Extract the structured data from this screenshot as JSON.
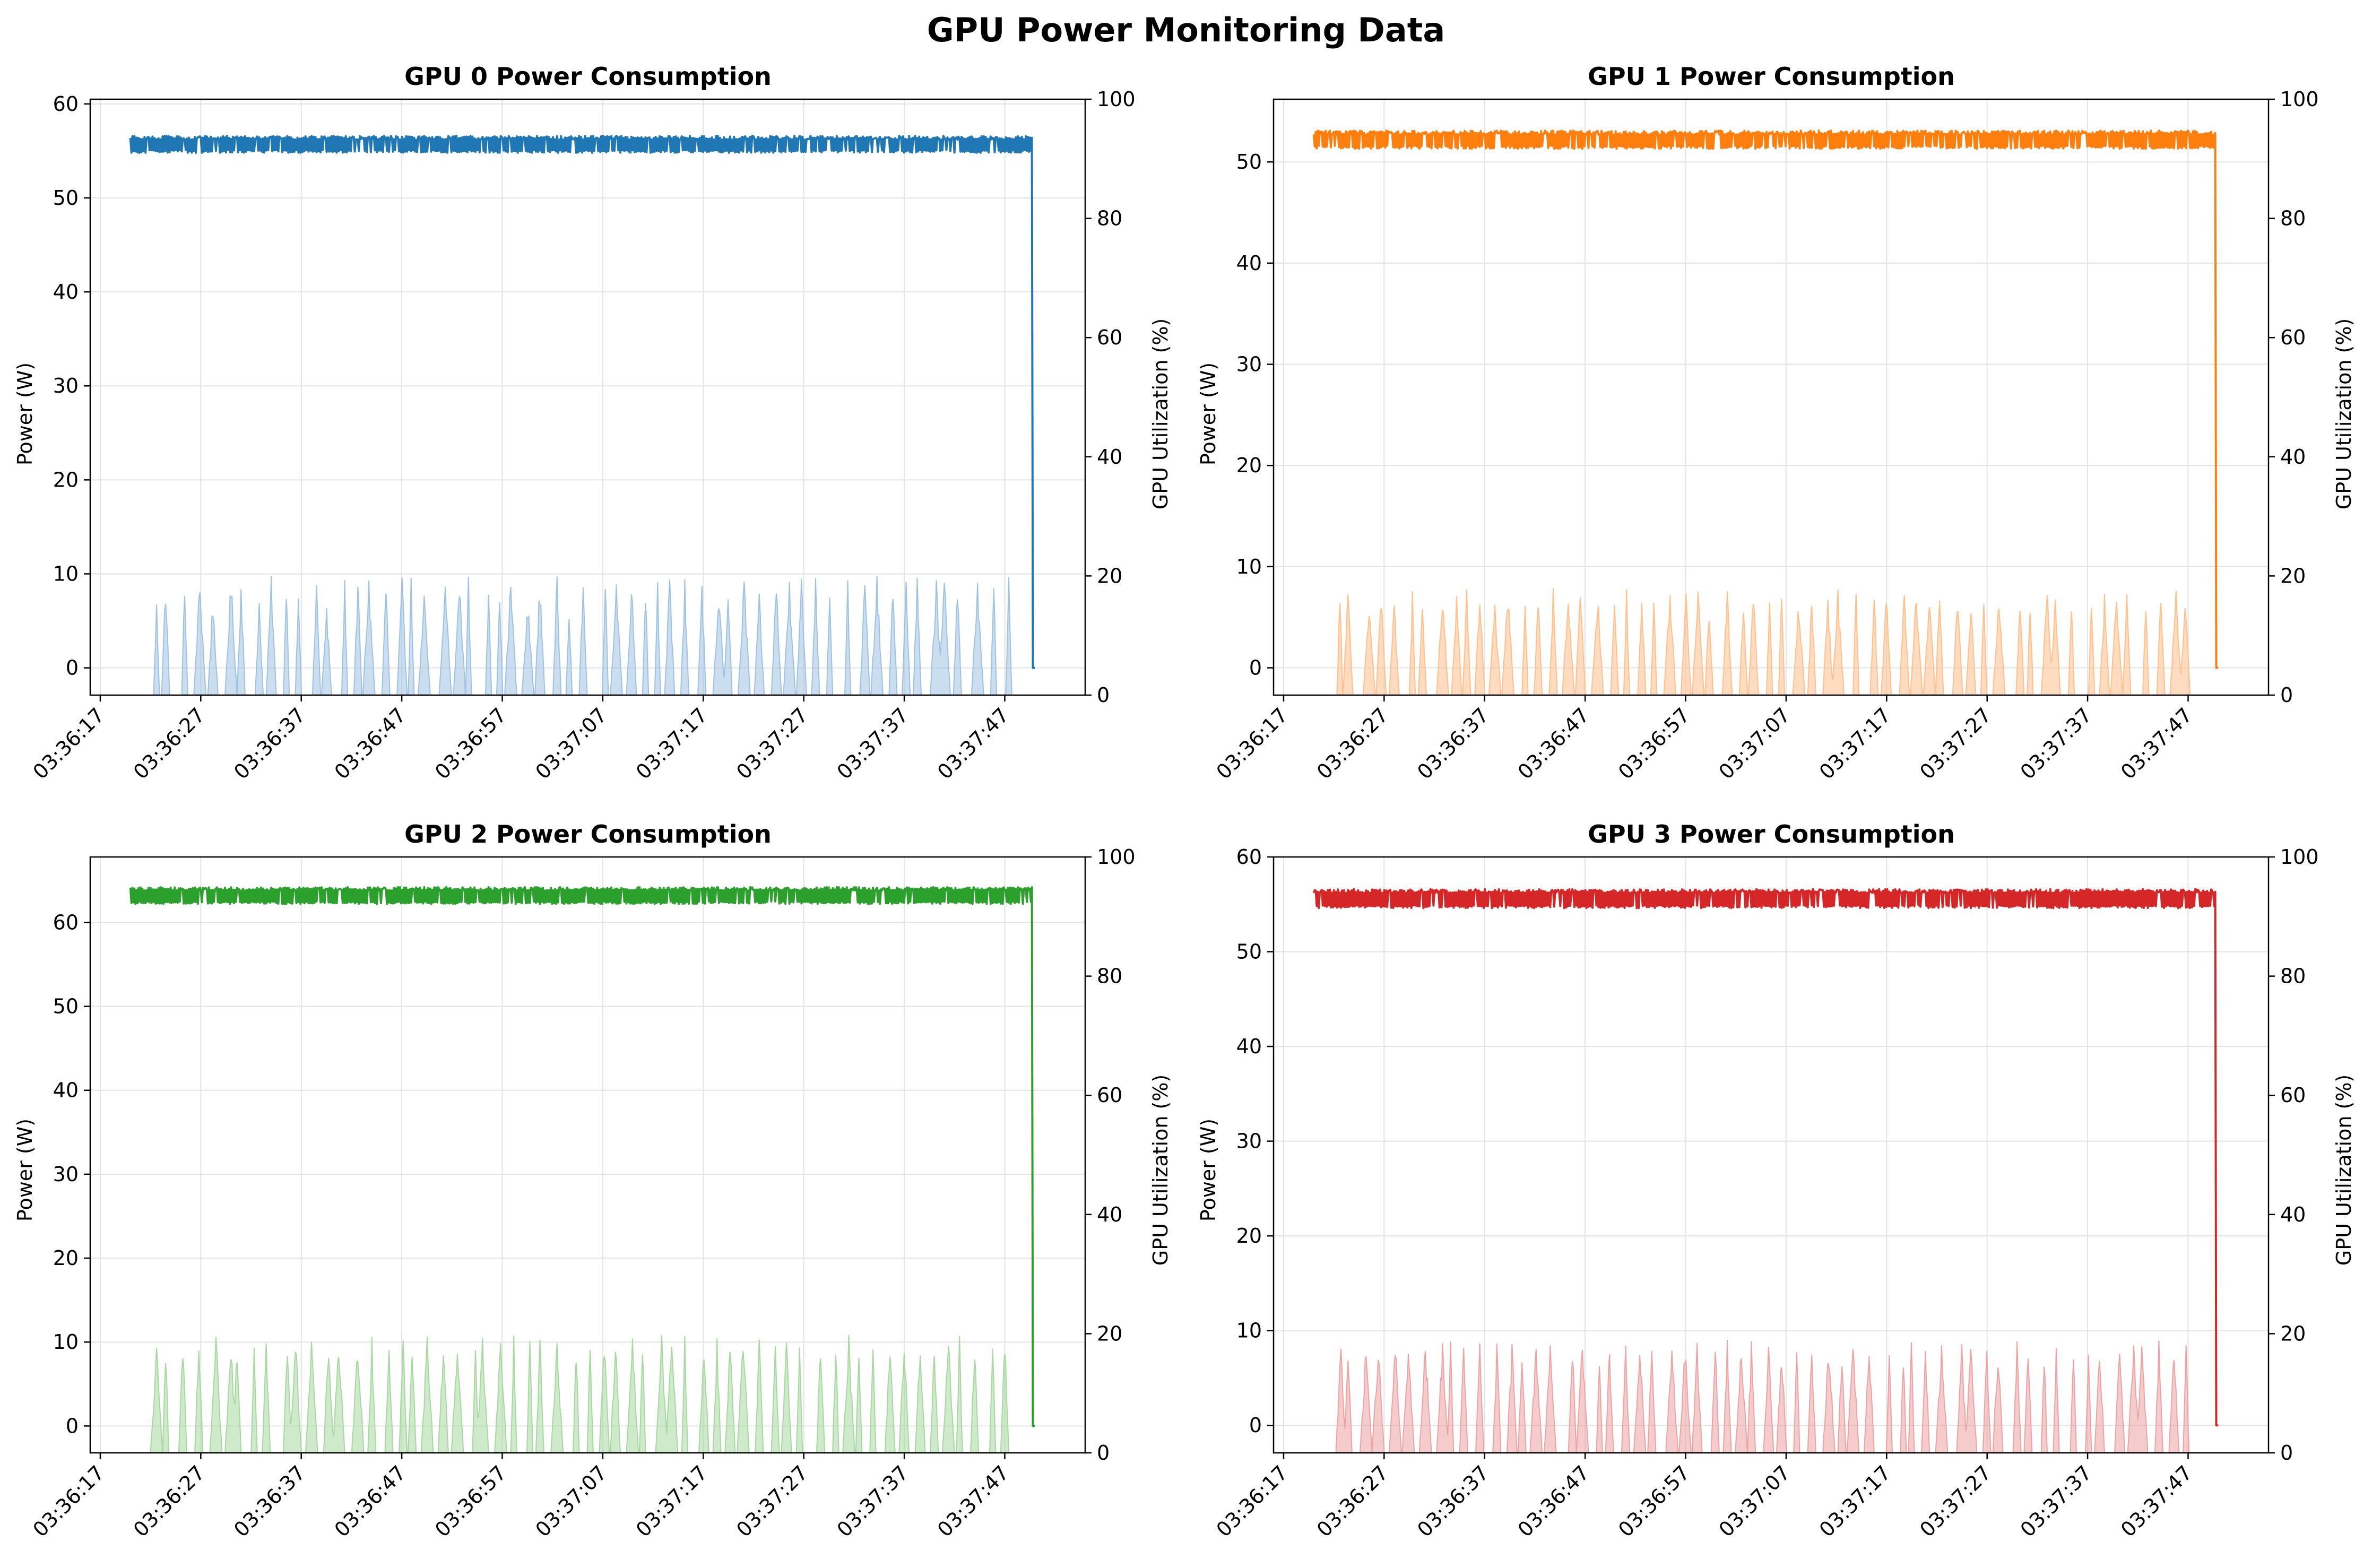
{
  "figure": {
    "suptitle": "GPU Power Monitoring Data"
  },
  "chart_data": [
    {
      "type": "line",
      "title": "GPU 0 Power Consumption",
      "xlabel": "",
      "ylabel": "Power (W)",
      "y2label": "GPU Utilization (%)",
      "color": "#1f77b4",
      "util_color": "#9ec2e1",
      "xlim": [
        "03:36:16",
        "03:37:55"
      ],
      "x_ticks": [
        "03:36:17",
        "03:36:27",
        "03:36:37",
        "03:36:47",
        "03:36:57",
        "03:37:07",
        "03:37:17",
        "03:37:27",
        "03:37:37",
        "03:37:47"
      ],
      "ylim": [
        -2.9,
        60.5
      ],
      "y_ticks": [
        0,
        10,
        20,
        30,
        40,
        50,
        60
      ],
      "y2lim": [
        0,
        100
      ],
      "y2_ticks": [
        0,
        20,
        40,
        60,
        80,
        100
      ],
      "grid": true,
      "x_range": [
        "03:36:20",
        "03:37:50"
      ],
      "power_series": {
        "name": "Power",
        "base": 54.8,
        "high": 56.6,
        "final": 0
      },
      "util_series": {
        "name": "GPU Utilization",
        "peaks": [
          16,
          20,
          20,
          20,
          17,
          20,
          20,
          17,
          20,
          20,
          20,
          20,
          15,
          20,
          20,
          20,
          20,
          20,
          20,
          17,
          20,
          20,
          20,
          20,
          20,
          20,
          16,
          20,
          20,
          17,
          20,
          20,
          20,
          20,
          20,
          20,
          20,
          20,
          20,
          18,
          20,
          20,
          17,
          20,
          20,
          20,
          20,
          20,
          20,
          20,
          20,
          20,
          20,
          20,
          20,
          20,
          20,
          20,
          20,
          20
        ]
      }
    },
    {
      "type": "line",
      "title": "GPU 1 Power Consumption",
      "xlabel": "",
      "ylabel": "Power (W)",
      "y2label": "GPU Utilization (%)",
      "color": "#ff7f0e",
      "util_color": "#ffc08c",
      "xlim": [
        "03:36:16",
        "03:37:55"
      ],
      "x_ticks": [
        "03:36:17",
        "03:36:27",
        "03:36:37",
        "03:36:47",
        "03:36:57",
        "03:37:07",
        "03:37:17",
        "03:37:27",
        "03:37:37",
        "03:37:47"
      ],
      "ylim": [
        -2.7,
        56.2
      ],
      "y_ticks": [
        0,
        10,
        20,
        30,
        40,
        50
      ],
      "y2lim": [
        0,
        100
      ],
      "y2_ticks": [
        0,
        20,
        40,
        60,
        80,
        100
      ],
      "grid": true,
      "x_range": [
        "03:36:20",
        "03:37:50"
      ],
      "power_series": {
        "name": "Power",
        "base": 51.3,
        "high": 53.1,
        "final": 0
      },
      "util_series": {
        "name": "GPU Utilization",
        "peaks": [
          18,
          18,
          16,
          18,
          16,
          18,
          17,
          18,
          18,
          18,
          18,
          16,
          18,
          18,
          18,
          18,
          18,
          18,
          18,
          17,
          18,
          18,
          18,
          18,
          18,
          18,
          16,
          18,
          18,
          18,
          18,
          18,
          17,
          18,
          18,
          18,
          18,
          18,
          18,
          18,
          18,
          18,
          18,
          18,
          16,
          18,
          18,
          18,
          18,
          18,
          18,
          18,
          18,
          18,
          18,
          18,
          18,
          18,
          18,
          18
        ]
      }
    },
    {
      "type": "line",
      "title": "GPU 2 Power Consumption",
      "xlabel": "",
      "ylabel": "Power (W)",
      "y2label": "GPU Utilization (%)",
      "color": "#2ca02c",
      "util_color": "#a6d8a0",
      "xlim": [
        "03:36:16",
        "03:37:55"
      ],
      "x_ticks": [
        "03:36:17",
        "03:36:27",
        "03:36:37",
        "03:36:47",
        "03:36:57",
        "03:37:07",
        "03:37:17",
        "03:37:27",
        "03:37:37",
        "03:37:47"
      ],
      "ylim": [
        -3.2,
        67.8
      ],
      "y_ticks": [
        0,
        10,
        20,
        30,
        40,
        50,
        60
      ],
      "y2lim": [
        0,
        100
      ],
      "y2_ticks": [
        0,
        20,
        40,
        60,
        80,
        100
      ],
      "grid": true,
      "x_range": [
        "03:36:20",
        "03:37:50"
      ],
      "power_series": {
        "name": "Power",
        "base": 62.2,
        "high": 64.2,
        "final": 0
      },
      "util_series": {
        "name": "GPU Utilization",
        "peaks": [
          18,
          20,
          20,
          20,
          20,
          19,
          20,
          20,
          20,
          20,
          20,
          20,
          20,
          20,
          20,
          20,
          20,
          20,
          20,
          20,
          20,
          20,
          20,
          20,
          20,
          20,
          20,
          20,
          20,
          20,
          20,
          20,
          20,
          20,
          20,
          20,
          20,
          20,
          20,
          20,
          20,
          20,
          20,
          20,
          20,
          20,
          20,
          20,
          20,
          20,
          20,
          20,
          20,
          20,
          20,
          20,
          20,
          20,
          20,
          20
        ]
      }
    },
    {
      "type": "line",
      "title": "GPU 3 Power Consumption",
      "xlabel": "",
      "ylabel": "Power (W)",
      "y2label": "GPU Utilization (%)",
      "color": "#d62728",
      "util_color": "#eca3a3",
      "xlim": [
        "03:36:16",
        "03:37:55"
      ],
      "x_ticks": [
        "03:36:17",
        "03:36:27",
        "03:36:37",
        "03:36:47",
        "03:36:57",
        "03:37:07",
        "03:37:17",
        "03:37:27",
        "03:37:37",
        "03:37:47"
      ],
      "ylim": [
        -2.9,
        60.0
      ],
      "y_ticks": [
        0,
        10,
        20,
        30,
        40,
        50,
        60
      ],
      "y2lim": [
        0,
        100
      ],
      "y2_ticks": [
        0,
        20,
        40,
        60,
        80,
        100
      ],
      "grid": true,
      "x_range": [
        "03:36:20",
        "03:37:50"
      ],
      "power_series": {
        "name": "Power",
        "base": 54.6,
        "high": 56.6,
        "final": 0
      },
      "util_series": {
        "name": "GPU Utilization",
        "peaks": [
          19,
          19,
          19,
          19,
          19,
          19,
          19,
          19,
          19,
          19,
          19,
          19,
          19,
          19,
          19,
          19,
          19,
          19,
          19,
          19,
          19,
          19,
          19,
          19,
          19,
          19,
          19,
          19,
          19,
          19,
          19,
          19,
          19,
          19,
          19,
          19,
          19,
          19,
          19,
          19,
          19,
          19,
          19,
          19,
          19,
          19,
          19,
          19,
          19,
          19,
          19,
          19,
          19,
          19,
          19,
          19,
          19,
          19,
          19,
          19
        ]
      }
    }
  ]
}
